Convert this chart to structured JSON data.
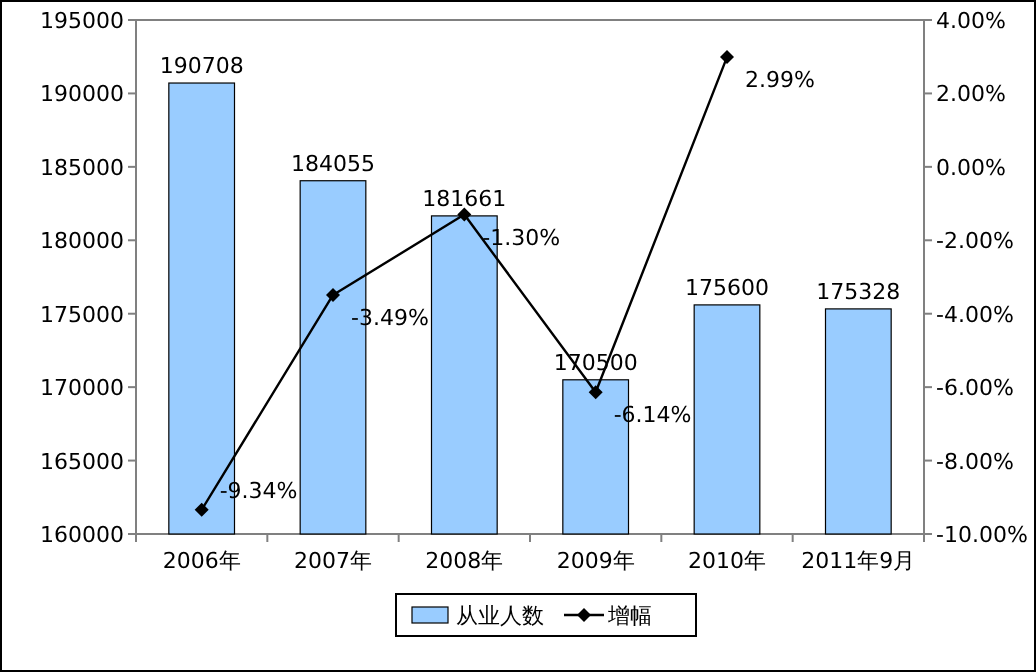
{
  "chart_data": {
    "type": "bar",
    "categories": [
      "2006年",
      "2007年",
      "2008年",
      "2009年",
      "2010年",
      "2011年9月"
    ],
    "series": [
      {
        "name": "从业人数",
        "color": "#99ccff",
        "values": [
          190708,
          184055,
          181661,
          170500,
          175600,
          175328
        ],
        "value_labels": [
          "190708",
          "184055",
          "181661",
          "170500",
          "175600",
          "175328"
        ]
      },
      {
        "name": "增幅",
        "type": "line",
        "axis": "y2",
        "color": "#000000",
        "marker": "diamond",
        "line_style": "solid",
        "values": [
          -9.34,
          -3.49,
          -1.3,
          -6.14,
          2.99,
          null
        ],
        "value_labels": [
          "-9.34%",
          "-3.49%",
          "-1.30%",
          "-6.14%",
          "2.99%",
          null
        ]
      }
    ],
    "ylim": [
      160000,
      195000
    ],
    "yticks": [
      160000,
      165000,
      170000,
      175000,
      180000,
      185000,
      190000,
      195000
    ],
    "y2lim": [
      -10,
      4
    ],
    "y2ticks": [
      {
        "value": -10,
        "label": "-10.00%"
      },
      {
        "value": -8,
        "label": "-8.00%"
      },
      {
        "value": -6,
        "label": "-6.00%"
      },
      {
        "value": -4,
        "label": "-4.00%"
      },
      {
        "value": -2,
        "label": "-2.00%"
      },
      {
        "value": 0,
        "label": "0.00%"
      },
      {
        "value": 2,
        "label": "2.00%"
      },
      {
        "value": 4,
        "label": "4.00%"
      }
    ],
    "legend": "bottom"
  }
}
